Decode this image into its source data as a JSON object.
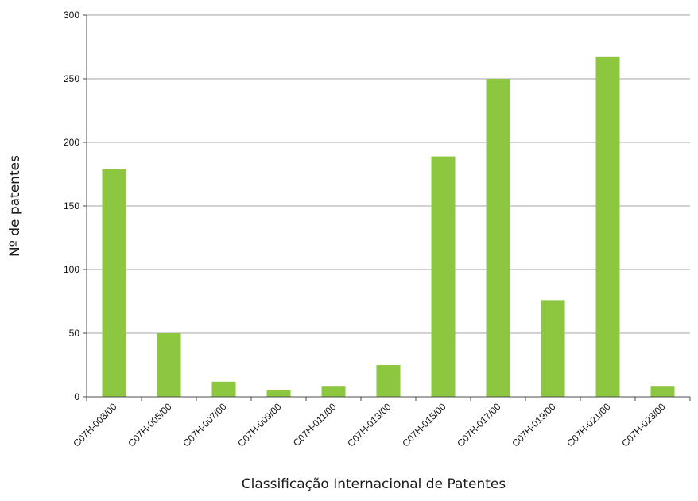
{
  "chart_data": {
    "type": "bar",
    "categories": [
      "C07H-003/00",
      "C07H-005/00",
      "C07H-007/00",
      "C07H-009/00",
      "C07H-011/00",
      "C07H-013/00",
      "C07H-015/00",
      "C07H-017/00",
      "C07H-019/00",
      "C07H-021/00",
      "C07H-023/00"
    ],
    "values": [
      179,
      50,
      12,
      5,
      8,
      25,
      189,
      250,
      76,
      267,
      8
    ],
    "xlabel": "Classificação Internacional de Patentes",
    "ylabel": "Nº de patentes",
    "ylim": [
      0,
      300
    ],
    "yticks": [
      "0",
      "50",
      "100",
      "150",
      "200",
      "250",
      "300"
    ],
    "grid": true,
    "legend": "none",
    "bar_color": "#8dc63f"
  }
}
